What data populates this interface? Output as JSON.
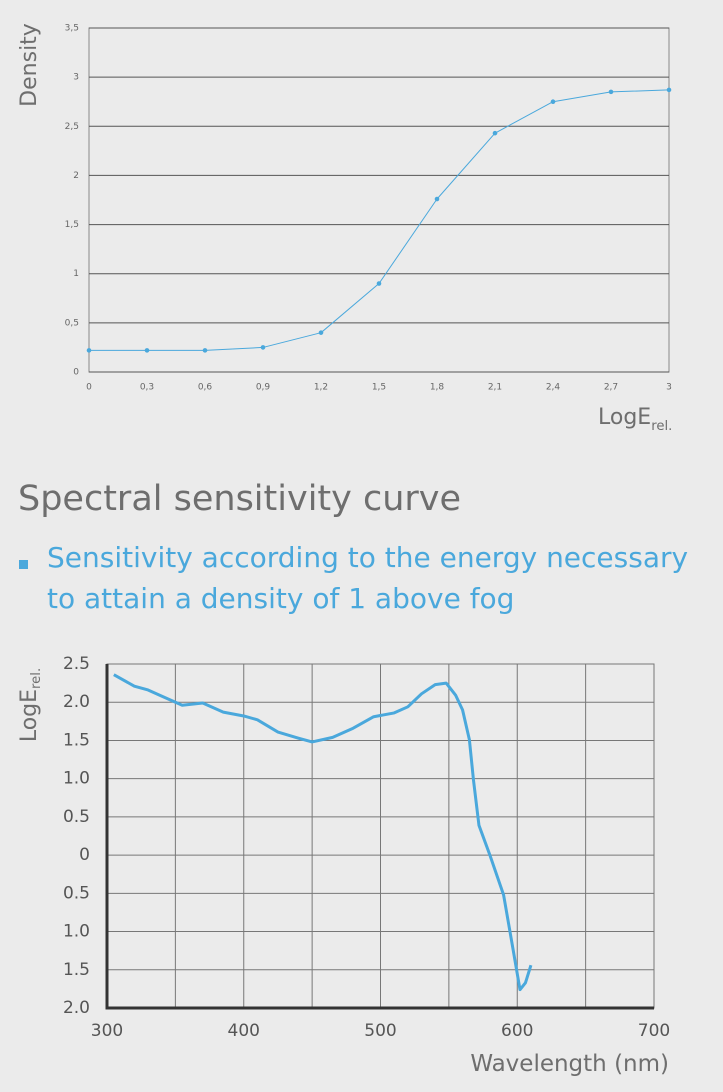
{
  "chart_data": [
    {
      "type": "line",
      "y_label": "Density",
      "x_label": "LogE",
      "x_label_sub": "rel.",
      "x": [
        0,
        0.3,
        0.6,
        0.9,
        1.2,
        1.5,
        1.8,
        2.1,
        2.4,
        2.7,
        3
      ],
      "values": [
        0.22,
        0.22,
        0.22,
        0.25,
        0.4,
        0.9,
        1.76,
        2.43,
        2.75,
        2.85,
        2.87
      ],
      "color": "#4aa8dc",
      "markers": true,
      "grid": "y",
      "xlim": [
        0,
        3
      ],
      "xticks": [
        0,
        {
          "value": 0.3,
          "label": "0,3"
        },
        {
          "value": 0.6,
          "label": "0,6"
        },
        {
          "value": 0.9,
          "label": "0,9"
        },
        {
          "value": 1.2,
          "label": "1,2"
        },
        {
          "value": 1.5,
          "label": "1,5"
        },
        {
          "value": 1.8,
          "label": "1,8"
        },
        {
          "value": 2.1,
          "label": "2,1"
        },
        {
          "value": 2.4,
          "label": "2,4"
        },
        {
          "value": 2.7,
          "label": "2,7"
        },
        3
      ],
      "ylim": [
        0,
        3.5
      ],
      "yticks": [
        0,
        {
          "value": 0.5,
          "label": "0,5"
        },
        1,
        {
          "value": 1.5,
          "label": "1,5"
        },
        2,
        {
          "value": 2.5,
          "label": "2,5"
        },
        3,
        {
          "value": 3.5,
          "label": "3,5"
        }
      ]
    },
    {
      "type": "line",
      "y_label": "LogE",
      "y_label_sub": "rel.",
      "x_label": "Wavelength (nm)",
      "x": [
        305,
        320,
        330,
        340,
        355,
        370,
        385,
        400,
        410,
        425,
        440,
        450,
        465,
        480,
        495,
        510,
        520,
        530,
        540,
        548,
        555,
        560,
        565,
        568,
        572,
        580,
        590,
        597,
        602,
        606,
        610
      ],
      "values": [
        2.36,
        2.21,
        2.16,
        2.08,
        1.96,
        1.99,
        1.87,
        1.82,
        1.77,
        1.61,
        1.53,
        1.48,
        1.54,
        1.66,
        1.81,
        1.86,
        1.94,
        2.11,
        2.23,
        2.25,
        2.09,
        1.9,
        1.51,
        0.98,
        0.39,
        0.0,
        -0.52,
        -1.24,
        -1.76,
        -1.67,
        -1.44
      ],
      "color": "#4aa8dc",
      "markers": false,
      "grid": "both",
      "xlim": [
        300,
        700
      ],
      "xticks": [
        300,
        400,
        500,
        600,
        700
      ],
      "xminorticks": [
        350,
        450,
        550,
        650
      ],
      "ylim": [
        -2,
        2.5
      ],
      "yticks": [
        {
          "value": -2,
          "label": "2.0"
        },
        {
          "value": -1.5,
          "label": "1.5"
        },
        {
          "value": -1,
          "label": "1.0"
        },
        {
          "value": -0.5,
          "label": "0.5"
        },
        0,
        0.5,
        {
          "value": 1,
          "label": "1.0"
        },
        1.5,
        {
          "value": 2,
          "label": "2.0"
        },
        2.5
      ]
    }
  ],
  "heading": "Spectral sensitivity curve",
  "bullet_lines": [
    "Sensitivity according to the energy necessary",
    "to attain a density of 1 above fog"
  ]
}
